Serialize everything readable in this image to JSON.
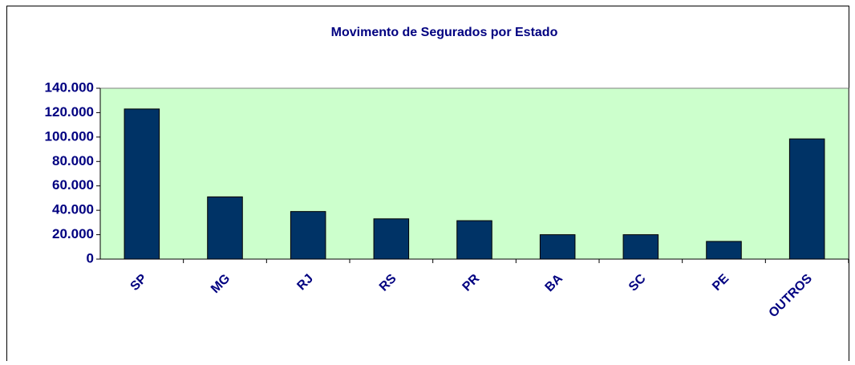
{
  "chart_data": {
    "type": "bar",
    "title": "Movimento de Segurados por Estado",
    "categories": [
      "SP",
      "MG",
      "RJ",
      "RS",
      "PR",
      "BA",
      "SC",
      "PE",
      "OUTROS"
    ],
    "values": [
      123000,
      51000,
      39000,
      33000,
      31500,
      20000,
      20000,
      14500,
      98500
    ],
    "color": "#003366",
    "ylim": [
      0,
      140000
    ],
    "yticks": [
      0,
      {
        "value": 20000,
        "label": "20.000"
      },
      {
        "value": 40000,
        "label": "40.000"
      },
      {
        "value": 60000,
        "label": "60.000"
      },
      {
        "value": 80000,
        "label": "80.000"
      },
      {
        "value": 100000,
        "label": "100.000"
      },
      {
        "value": 120000,
        "label": "120.000"
      },
      {
        "value": 140000,
        "label": "140.000"
      }
    ],
    "grid": false
  }
}
